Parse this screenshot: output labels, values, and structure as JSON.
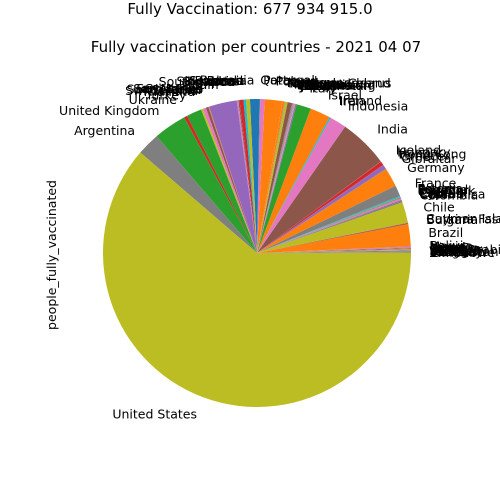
{
  "chart_data": {
    "type": "pie",
    "suptitle": "Fully Vaccination: 677 934 915.0",
    "title": "Fully vaccination per countries - 2021 04 07",
    "ylabel": "people_fully_vaccinated",
    "start_angle_deg": 0,
    "direction": "counterclockwise",
    "slices": [
      {
        "label": "Zimbabwe",
        "value": 0.03,
        "color": "#1f77b4"
      },
      {
        "label": "Wales",
        "value": 0.05,
        "color": "#ff7f0e"
      },
      {
        "label": "Uruguay",
        "value": 0.05,
        "color": "#2ca02c"
      },
      {
        "label": "Uzbekistan",
        "value": 0.02,
        "color": "#d62728"
      },
      {
        "label": "Vietnam",
        "value": 0.02,
        "color": "#9467bd"
      },
      {
        "label": "Tunisia",
        "value": 0.02,
        "color": "#8c564b"
      },
      {
        "label": "Senegal",
        "value": 0.02,
        "color": "#e377c2"
      },
      {
        "label": "Serbia",
        "value": 0.2,
        "color": "#7f7f7f"
      },
      {
        "label": "Saudi Arabia",
        "value": 0.05,
        "color": "#bcbd22"
      },
      {
        "label": "Pakistan",
        "value": 0.02,
        "color": "#17becf"
      },
      {
        "label": "Paraguay",
        "value": 0.02,
        "color": "#1f77b4"
      },
      {
        "label": "Peru",
        "value": 0.1,
        "color": "#ff7f0e"
      },
      {
        "label": "Panama",
        "value": 0.04,
        "color": "#2ca02c"
      },
      {
        "label": "Oman",
        "value": 0.02,
        "color": "#d62728"
      },
      {
        "label": "Nigeria",
        "value": 0.02,
        "color": "#9467bd"
      },
      {
        "label": "Nepal",
        "value": 0.1,
        "color": "#8c564b"
      },
      {
        "label": "Mexico",
        "value": 0.2,
        "color": "#e377c2"
      },
      {
        "label": "Bolivia",
        "value": 0.05,
        "color": "#7f7f7f"
      },
      {
        "label": "Brazil",
        "value": 3.5,
        "color": "#ff7f0e"
      },
      {
        "label": "Bulgaria",
        "value": 0.15,
        "color": "#8c564b"
      },
      {
        "label": "Burkina Faso",
        "value": 0.02,
        "color": "#9467bd"
      },
      {
        "label": "Cayman Islands",
        "value": 0.05,
        "color": "#d62728"
      },
      {
        "label": "Chile",
        "value": 3.3,
        "color": "#bcbd22"
      },
      {
        "label": "Colombia",
        "value": 0.2,
        "color": "#7f7f7f"
      },
      {
        "label": "Costa Rica",
        "value": 0.05,
        "color": "#1f77b4"
      },
      {
        "label": "Croatia",
        "value": 0.1,
        "color": "#8c564b"
      },
      {
        "label": "Cyprus",
        "value": 0.05,
        "color": "#9467bd"
      },
      {
        "label": "Czechia",
        "value": 0.3,
        "color": "#e377c2"
      },
      {
        "label": "Denmark",
        "value": 0.1,
        "color": "#2ca02c"
      },
      {
        "label": "Ecuador",
        "value": 0.05,
        "color": "#ff7f0e"
      },
      {
        "label": "Egypt",
        "value": 0.02,
        "color": "#d62728"
      },
      {
        "label": "England",
        "value": 0.15,
        "color": "#17becf"
      },
      {
        "label": "Estonia",
        "value": 0.05,
        "color": "#1f77b4"
      },
      {
        "label": "France",
        "value": 1.7,
        "color": "#7f7f7f"
      },
      {
        "label": "Germany",
        "value": 3.0,
        "color": "#ff7f0e"
      },
      {
        "label": "Gibraltar",
        "value": 0.04,
        "color": "#2ca02c"
      },
      {
        "label": "Greece",
        "value": 0.7,
        "color": "#9467bd"
      },
      {
        "label": "Hong Kong",
        "value": 0.05,
        "color": "#8c564b"
      },
      {
        "label": "Hungary",
        "value": 0.6,
        "color": "#d62728"
      },
      {
        "label": "Iceland",
        "value": 0.04,
        "color": "#e377c2"
      },
      {
        "label": "India",
        "value": 7.8,
        "color": "#8c564b"
      },
      {
        "label": "Indonesia",
        "value": 2.6,
        "color": "#e377c2"
      },
      {
        "label": "Iran",
        "value": 0.05,
        "color": "#7f7f7f"
      },
      {
        "label": "Ireland",
        "value": 0.2,
        "color": "#17becf"
      },
      {
        "label": "Israel",
        "value": 3.2,
        "color": "#ff7f0e"
      },
      {
        "label": "Italy",
        "value": 2.3,
        "color": "#2ca02c"
      },
      {
        "label": "Japan",
        "value": 0.2,
        "color": "#9467bd"
      },
      {
        "label": "Jersey",
        "value": 0.02,
        "color": "#17becf"
      },
      {
        "label": "Kazakhstan",
        "value": 0.05,
        "color": "#bcbd22"
      },
      {
        "label": "Latvia",
        "value": 0.05,
        "color": "#7f7f7f"
      },
      {
        "label": "Lithuania",
        "value": 0.2,
        "color": "#e377c2"
      },
      {
        "label": "Luxembourg",
        "value": 0.02,
        "color": "#d62728"
      },
      {
        "label": "Malta",
        "value": 0.05,
        "color": "#2ca02c"
      },
      {
        "label": "Maldives",
        "value": 0.03,
        "color": "#1f77b4"
      },
      {
        "label": "Monaco",
        "value": 0.02,
        "color": "#9467bd"
      },
      {
        "label": "Mongolia",
        "value": 0.1,
        "color": "#7f7f7f"
      },
      {
        "label": "Morocco",
        "value": 0.7,
        "color": "#8c564b"
      },
      {
        "label": "Netherlands",
        "value": 0.4,
        "color": "#bcbd22"
      },
      {
        "label": "Northern Cyprus",
        "value": 0.05,
        "color": "#17becf"
      },
      {
        "label": "Northern Ireland",
        "value": 0.05,
        "color": "#d62728"
      },
      {
        "label": "Norway",
        "value": 0.3,
        "color": "#ff7f0e"
      },
      {
        "label": "Poland",
        "value": 2.8,
        "color": "#ff7f0e"
      },
      {
        "label": "Portugal",
        "value": 0.7,
        "color": "#e377c2"
      },
      {
        "label": "Qatar",
        "value": 0.1,
        "color": "#7f7f7f"
      },
      {
        "label": "Romania",
        "value": 1.5,
        "color": "#1f77b4"
      },
      {
        "label": "Russia",
        "value": 0.6,
        "color": "#bcbd22"
      },
      {
        "label": "Rwanda",
        "value": 0.02,
        "color": "#9467bd"
      },
      {
        "label": "Scotland",
        "value": 0.4,
        "color": "#17becf"
      },
      {
        "label": "Singapore",
        "value": 0.6,
        "color": "#d62728"
      },
      {
        "label": "Slovakia",
        "value": 0.2,
        "color": "#8c564b"
      },
      {
        "label": "Slovenia",
        "value": 0.2,
        "color": "#e377c2"
      },
      {
        "label": "South Korea",
        "value": 0.05,
        "color": "#7f7f7f"
      },
      {
        "label": "Spain",
        "value": 4.4,
        "color": "#9467bd"
      },
      {
        "label": "San Marino",
        "value": 0.02,
        "color": "#bcbd22"
      },
      {
        "label": "Seychelles",
        "value": 0.02,
        "color": "#7f7f7f"
      },
      {
        "label": "Sri Lanka",
        "value": 0.05,
        "color": "#d62728"
      },
      {
        "label": "South Africa",
        "value": 0.05,
        "color": "#ff7f0e"
      },
      {
        "label": "Sweden",
        "value": 0.4,
        "color": "#8c564b"
      },
      {
        "label": "Switzerland",
        "value": 0.5,
        "color": "#e377c2"
      },
      {
        "label": "Thailand",
        "value": 0.3,
        "color": "#bcbd22"
      },
      {
        "label": "Turkey",
        "value": 2.4,
        "color": "#2ca02c"
      },
      {
        "label": "Ukraine",
        "value": 0.5,
        "color": "#d62728"
      },
      {
        "label": "United Kingdom",
        "value": 5.2,
        "color": "#2ca02c"
      },
      {
        "label": "Argentina",
        "value": 3.6,
        "color": "#7f7f7f"
      },
      {
        "label": "United States",
        "value": 92.3,
        "color": "#bcbd22"
      }
    ]
  }
}
